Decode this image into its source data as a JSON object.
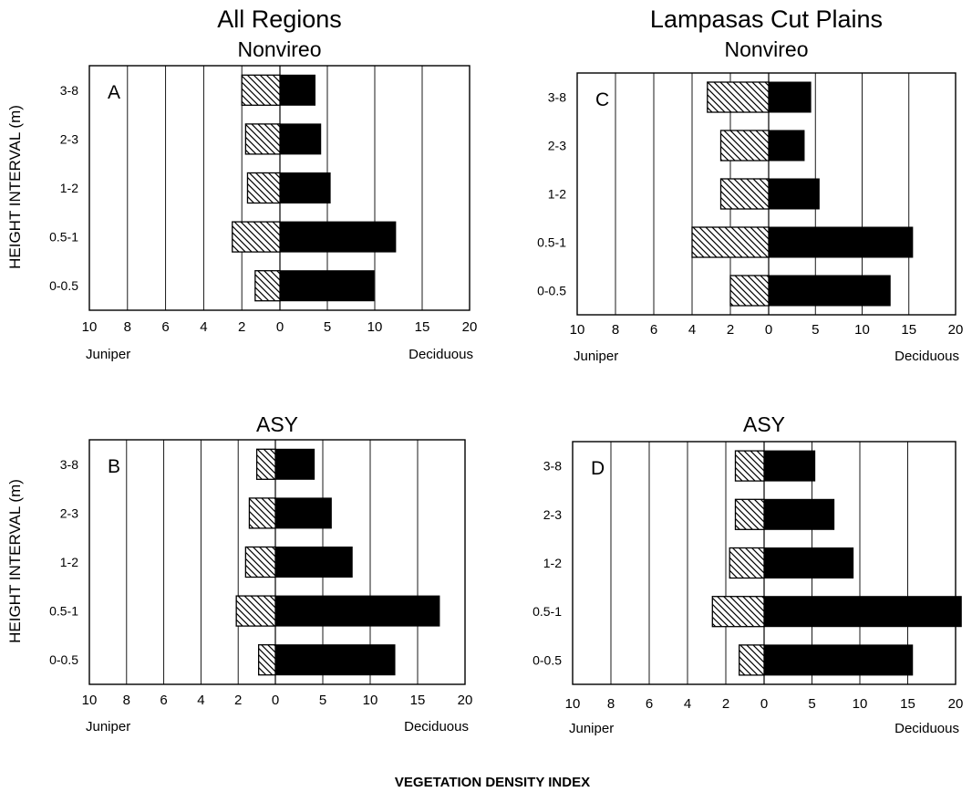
{
  "figure": {
    "ylabel": "HEIGHT INTERVAL (m)",
    "xlabel": "VEGETATION DENSITY INDEX"
  },
  "chart_data": [
    {
      "type": "bar",
      "letter": "A",
      "title": "All Regions",
      "subtitle": "Nonvireo",
      "categories": [
        "3-8",
        "2-3",
        "1-2",
        "0.5-1",
        "0-0.5"
      ],
      "series": [
        {
          "name": "Juniper",
          "values": [
            2.0,
            1.8,
            1.7,
            2.5,
            1.3
          ]
        },
        {
          "name": "Deciduous",
          "values": [
            3.7,
            4.3,
            5.3,
            12.2,
            9.9
          ]
        }
      ],
      "left_label": "Juniper",
      "right_label": "Deciduous",
      "left_ticks": [
        "10",
        "8",
        "6",
        "4",
        "2",
        "0"
      ],
      "right_ticks": [
        "5",
        "10",
        "15",
        "20"
      ],
      "juniper_range": [
        0,
        10
      ],
      "deciduous_range": [
        0,
        20
      ]
    },
    {
      "type": "bar",
      "letter": "B",
      "title": "ASY",
      "subtitle": "",
      "categories": [
        "3-8",
        "2-3",
        "1-2",
        "0.5-1",
        "0-0.5"
      ],
      "series": [
        {
          "name": "Juniper",
          "values": [
            1.0,
            1.4,
            1.6,
            2.1,
            0.9
          ]
        },
        {
          "name": "Deciduous",
          "values": [
            4.1,
            5.9,
            8.1,
            17.3,
            12.6
          ]
        }
      ],
      "left_label": "Juniper",
      "right_label": "Deciduous",
      "left_ticks": [
        "10",
        "8",
        "6",
        "4",
        "2",
        "0"
      ],
      "right_ticks": [
        "5",
        "10",
        "15",
        "20"
      ],
      "juniper_range": [
        0,
        10
      ],
      "deciduous_range": [
        0,
        20
      ]
    },
    {
      "type": "bar",
      "letter": "C",
      "title": "Lampasas Cut Plains",
      "subtitle": "Nonvireo",
      "categories": [
        "3-8",
        "2-3",
        "1-2",
        "0.5-1",
        "0-0.5"
      ],
      "series": [
        {
          "name": "Juniper",
          "values": [
            3.2,
            2.5,
            2.5,
            4.0,
            2.0
          ]
        },
        {
          "name": "Deciduous",
          "values": [
            4.5,
            3.8,
            5.4,
            15.4,
            13.0
          ]
        }
      ],
      "left_label": "Juniper",
      "right_label": "Deciduous",
      "left_ticks": [
        "10",
        "8",
        "6",
        "4",
        "2",
        "0"
      ],
      "right_ticks": [
        "5",
        "10",
        "15",
        "20"
      ],
      "juniper_range": [
        0,
        10
      ],
      "deciduous_range": [
        0,
        20
      ]
    },
    {
      "type": "bar",
      "letter": "D",
      "title": "ASY",
      "subtitle": "",
      "categories": [
        "3-8",
        "2-3",
        "1-2",
        "0.5-1",
        "0-0.5"
      ],
      "series": [
        {
          "name": "Juniper",
          "values": [
            1.5,
            1.5,
            1.8,
            2.7,
            1.3
          ]
        },
        {
          "name": "Deciduous",
          "values": [
            5.3,
            7.3,
            9.3,
            20.6,
            15.5
          ]
        }
      ],
      "left_label": "Juniper",
      "right_label": "Deciduous",
      "left_ticks": [
        "10",
        "8",
        "6",
        "4",
        "2",
        "0"
      ],
      "right_ticks": [
        "5",
        "10",
        "15",
        "20"
      ],
      "juniper_range": [
        0,
        10
      ],
      "deciduous_range": [
        0,
        20
      ]
    }
  ]
}
